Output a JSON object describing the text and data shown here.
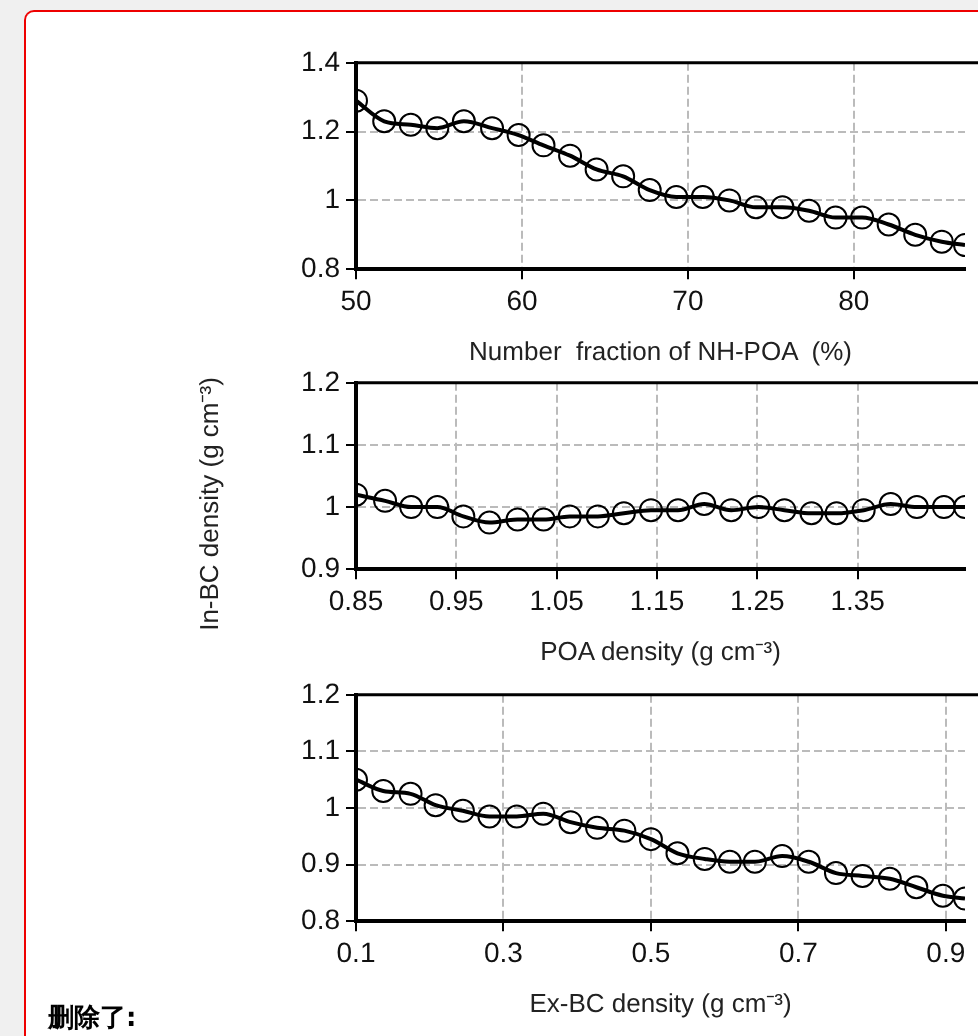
{
  "chart_data": [
    {
      "type": "line",
      "xlabel": "Number  fraction of NH-POA  (%)",
      "marker": "circle",
      "grid": true,
      "xlim": [
        50,
        86.7
      ],
      "xticks": [
        50,
        60,
        70,
        80
      ],
      "ylim": [
        0.8,
        1.4
      ],
      "yticks": [
        0.8,
        1,
        1.2,
        1.4
      ],
      "x": [
        50,
        51.7,
        53.3,
        54.9,
        56.5,
        58.2,
        59.8,
        61.3,
        62.9,
        64.5,
        66.1,
        67.7,
        69.3,
        70.9,
        72.5,
        74.1,
        75.7,
        77.3,
        78.9,
        80.5,
        82.1,
        83.7,
        85.3,
        86.7
      ],
      "series": [
        {
          "color": "#000000",
          "values": [
            1.29,
            1.23,
            1.22,
            1.21,
            1.23,
            1.21,
            1.19,
            1.16,
            1.13,
            1.09,
            1.07,
            1.03,
            1.01,
            1.01,
            1.0,
            0.98,
            0.98,
            0.97,
            0.95,
            0.95,
            0.93,
            0.9,
            0.88,
            0.87
          ]
        }
      ]
    },
    {
      "type": "line",
      "xlabel": "POA density (g cm⁻³)",
      "ylabel": "In-BC density (g cm⁻³)",
      "marker": "circle",
      "grid": true,
      "xlim": [
        0.85,
        1.457
      ],
      "xticks": [
        0.85,
        0.95,
        1.05,
        1.15,
        1.25,
        1.35
      ],
      "ylim": [
        0.9,
        1.2
      ],
      "yticks": [
        0.9,
        1,
        1.1,
        1.2
      ],
      "x": [
        0.85,
        0.879,
        0.905,
        0.931,
        0.957,
        0.983,
        1.011,
        1.037,
        1.063,
        1.091,
        1.117,
        1.144,
        1.171,
        1.197,
        1.224,
        1.251,
        1.277,
        1.304,
        1.329,
        1.356,
        1.383,
        1.409,
        1.436,
        1.457
      ],
      "series": [
        {
          "color": "#000000",
          "values": [
            1.02,
            1.01,
            1.0,
            1.0,
            0.985,
            0.975,
            0.98,
            0.98,
            0.985,
            0.985,
            0.99,
            0.995,
            0.995,
            1.005,
            0.995,
            1.0,
            0.995,
            0.99,
            0.99,
            0.995,
            1.005,
            1.0,
            1.0,
            1.0
          ]
        }
      ]
    },
    {
      "type": "line",
      "xlabel": "Ex-BC density (g cm⁻³)",
      "marker": "circle",
      "grid": true,
      "xlim": [
        0.1,
        0.926
      ],
      "xticks": [
        0.1,
        0.3,
        0.5,
        0.7,
        0.9
      ],
      "ylim": [
        0.8,
        1.2
      ],
      "yticks": [
        0.8,
        0.9,
        1,
        1.1,
        1.2
      ],
      "annotations": [
        "删除了:"
      ],
      "x": [
        0.1,
        0.137,
        0.174,
        0.208,
        0.245,
        0.281,
        0.318,
        0.354,
        0.391,
        0.427,
        0.464,
        0.5,
        0.536,
        0.573,
        0.607,
        0.641,
        0.678,
        0.714,
        0.751,
        0.787,
        0.824,
        0.86,
        0.896,
        0.926
      ],
      "series": [
        {
          "color": "#000000",
          "values": [
            1.05,
            1.03,
            1.025,
            1.005,
            0.995,
            0.985,
            0.985,
            0.99,
            0.975,
            0.965,
            0.96,
            0.945,
            0.92,
            0.91,
            0.905,
            0.905,
            0.915,
            0.905,
            0.885,
            0.88,
            0.875,
            0.86,
            0.845,
            0.84
          ]
        }
      ]
    }
  ]
}
